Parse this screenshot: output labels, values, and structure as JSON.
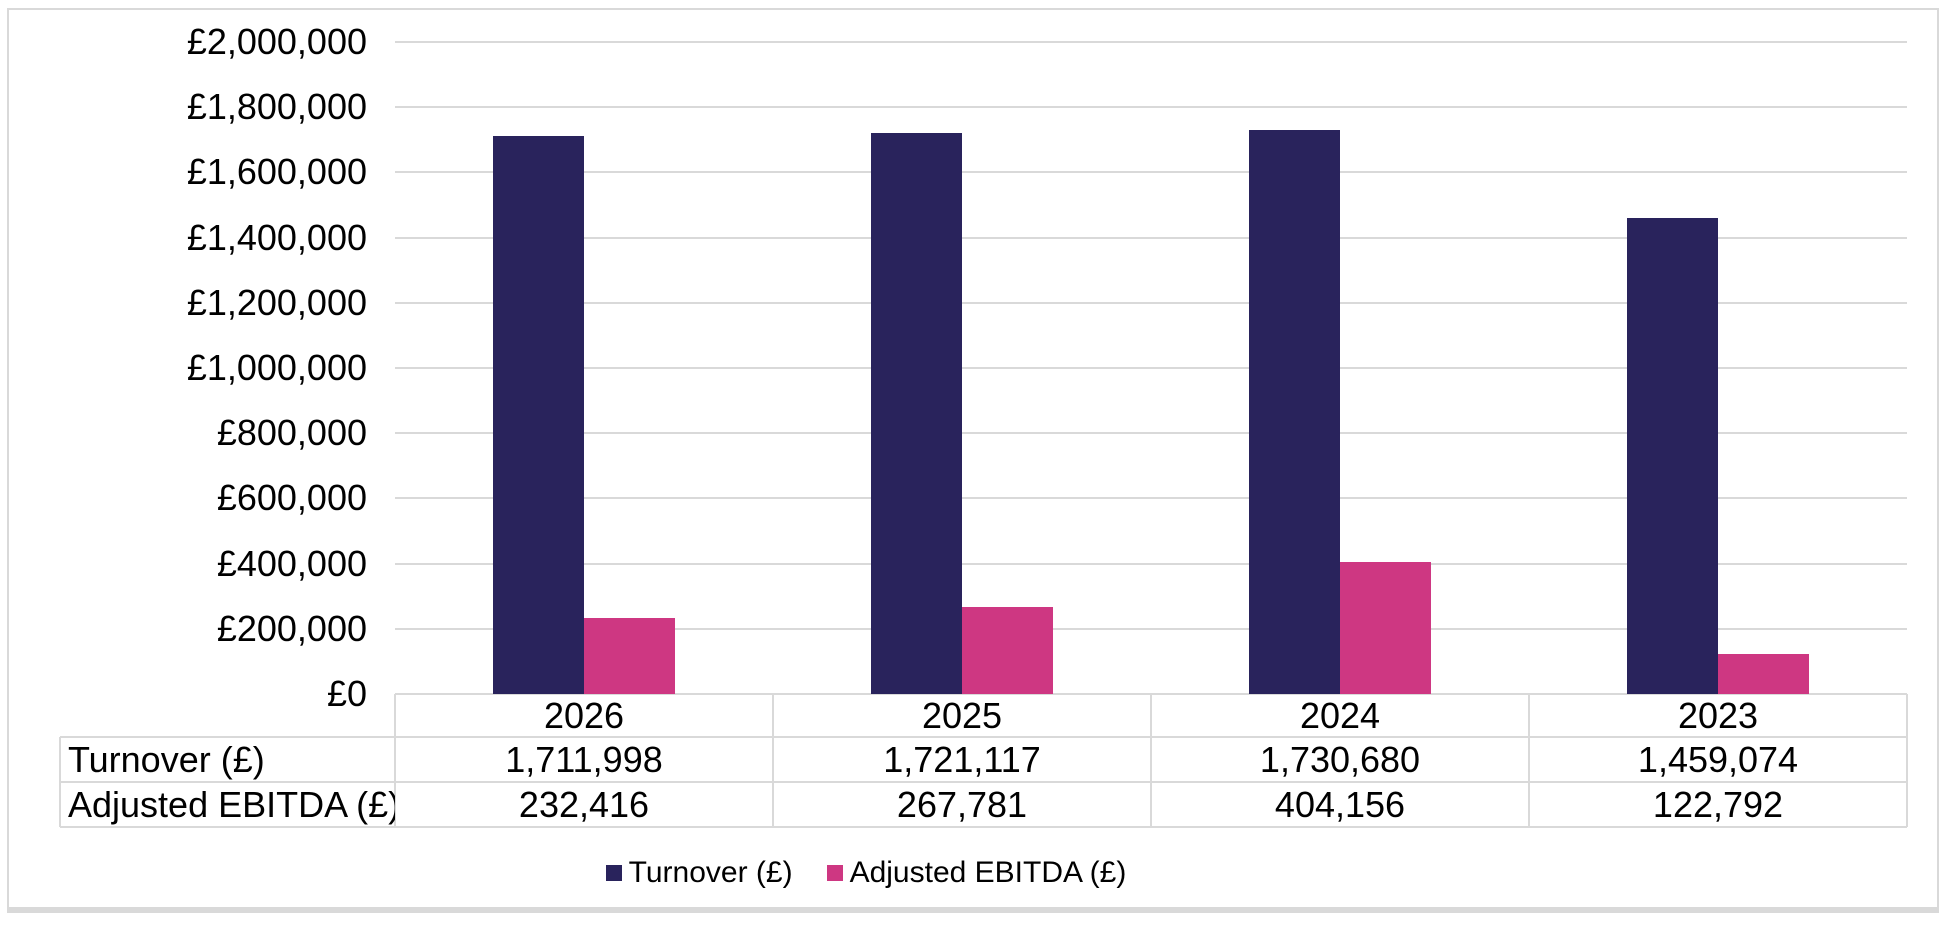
{
  "chart_data": {
    "type": "bar",
    "title": "",
    "categories": [
      "2026",
      "2025",
      "2024",
      "2023"
    ],
    "series": [
      {
        "key": "turnover",
        "name": "Turnover (£)",
        "color": "#29235C",
        "values": [
          1711998,
          1721117,
          1730680,
          1459074
        ],
        "formatted": [
          "1,711,998",
          "1,721,117",
          "1,730,680",
          "1,459,074"
        ]
      },
      {
        "key": "adjusted-ebitda",
        "name": "Adjusted EBITDA (£)",
        "color": "#CE3782",
        "values": [
          232416,
          267781,
          404156,
          122792
        ],
        "formatted": [
          "232,416",
          "267,781",
          "404,156",
          "122,792"
        ]
      }
    ],
    "y_axis": {
      "min": 0,
      "max": 2000000,
      "step": 200000,
      "tick_labels": [
        "£0",
        "£200,000",
        "£400,000",
        "£600,000",
        "£800,000",
        "£1,000,000",
        "£1,200,000",
        "£1,400,000",
        "£1,600,000",
        "£1,800,000",
        "£2,000,000"
      ]
    },
    "grid": true,
    "legend_position": "bottom",
    "legend": [
      "Turnover (£)",
      "Adjusted EBITDA (£)"
    ],
    "data_table": {
      "row_labels": [
        "Turnover (£)",
        "Adjusted EBITDA (£)"
      ]
    }
  },
  "colors": {
    "turnover": "#29235C",
    "adjusted_ebitda": "#CE3782",
    "gridline": "#d9d9d9",
    "frame_border": "#d9d9d9",
    "text": "#000000"
  }
}
